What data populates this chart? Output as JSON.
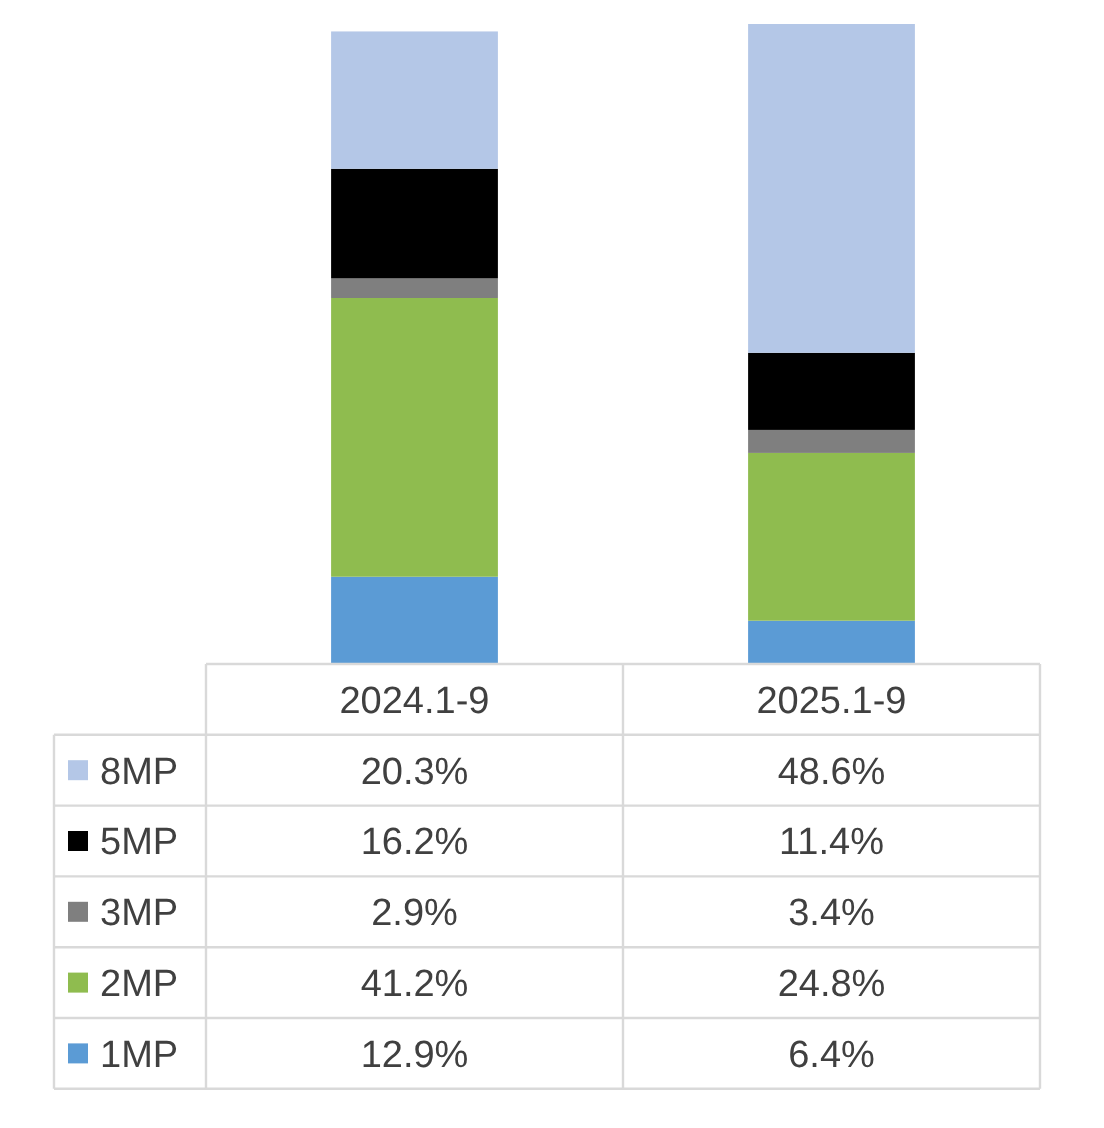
{
  "chart_data": {
    "type": "bar",
    "stacked": true,
    "legend": "bottom",
    "categories": [
      "2024.1-9",
      "2025.1-9"
    ],
    "series": [
      {
        "name": "1MP",
        "color": "#5b9bd5",
        "values": [
          12.9,
          6.4
        ],
        "value_labels": [
          "12.9%",
          "6.4%"
        ]
      },
      {
        "name": "2MP",
        "color": "#8fbc4f",
        "values": [
          41.2,
          24.8
        ],
        "value_labels": [
          "41.2%",
          "24.8%"
        ]
      },
      {
        "name": "3MP",
        "color": "#7f7f7f",
        "values": [
          2.9,
          3.4
        ],
        "value_labels": [
          "2.9%",
          "3.4%"
        ]
      },
      {
        "name": "5MP",
        "color": "#000000",
        "values": [
          16.2,
          11.4
        ],
        "value_labels": [
          "16.2%",
          "11.4%"
        ]
      },
      {
        "name": "8MP",
        "color": "#b4c7e7",
        "values": [
          20.3,
          48.6
        ],
        "value_labels": [
          "20.3%",
          "48.6%"
        ]
      }
    ]
  }
}
